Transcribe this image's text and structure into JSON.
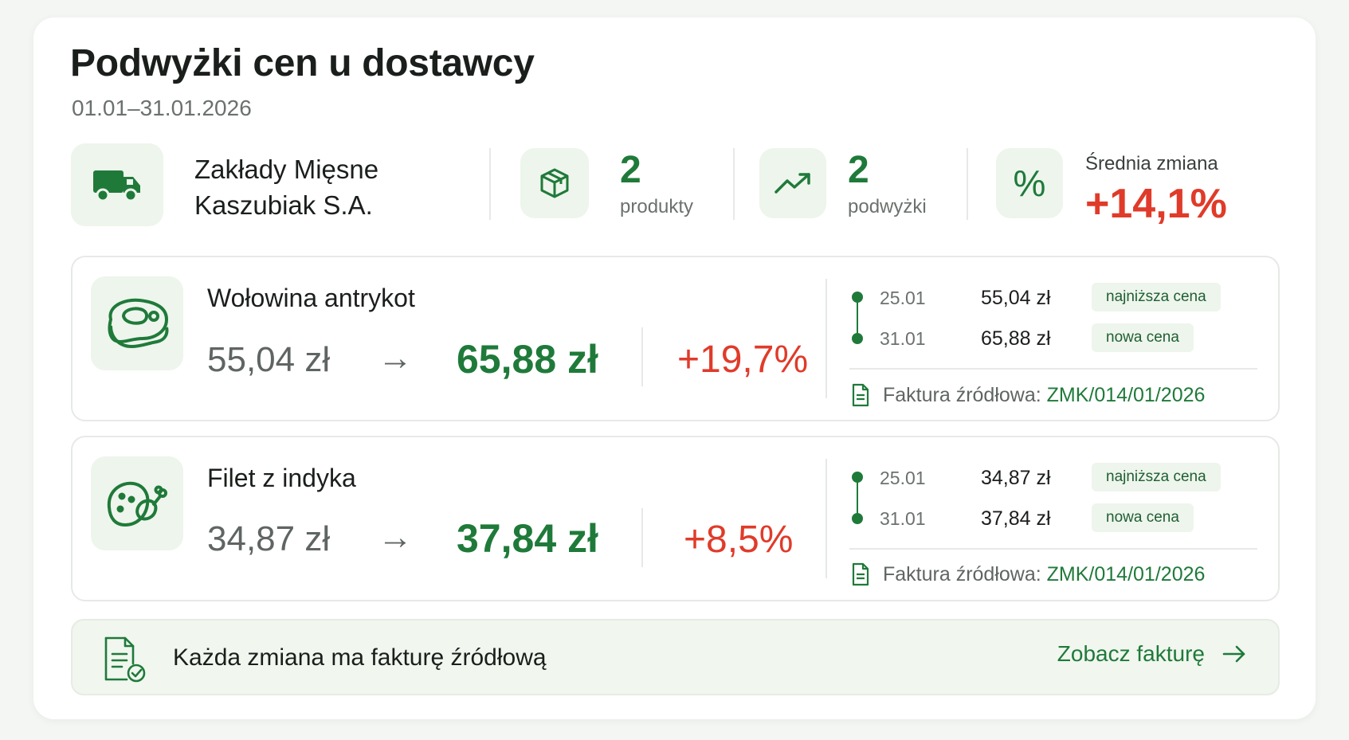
{
  "title": "Podwyżki cen u dostawcy",
  "date_range": "01.01–31.01.2026",
  "summary": {
    "supplier_line1": "Zakłady Mięsne",
    "supplier_line2": "Kaszubiak S.A.",
    "products_count": "2",
    "products_label": "produkty",
    "increases_count": "2",
    "increases_label": "podwyżki",
    "percent_symbol": "%",
    "avg_label": "Średnia zmiana",
    "avg_value": "+14,1%"
  },
  "products": [
    {
      "name": "Wołowina antrykot",
      "icon": "steak-icon",
      "old_price": "55,04 zł",
      "arrow": "→",
      "new_price": "65,88 zł",
      "change": "+19,7%",
      "history": [
        {
          "date": "25.01",
          "price": "55,04 zł",
          "tag": "najniższa cena"
        },
        {
          "date": "31.01",
          "price": "65,88 zł",
          "tag": "nowa cena"
        }
      ],
      "invoice_label": "Faktura źródłowa:",
      "invoice_number": "ZMK/014/01/2026"
    },
    {
      "name": "Filet z indyka",
      "icon": "poultry-icon",
      "old_price": "34,87 zł",
      "arrow": "→",
      "new_price": "37,84 zł",
      "change": "+8,5%",
      "history": [
        {
          "date": "25.01",
          "price": "34,87 zł",
          "tag": "najniższa cena"
        },
        {
          "date": "31.01",
          "price": "37,84 zł",
          "tag": "nowa cena"
        }
      ],
      "invoice_label": "Faktura źródłowa:",
      "invoice_number": "ZMK/014/01/2026"
    }
  ],
  "footer": {
    "text": "Każda zmiana ma fakturę źródłową",
    "link_label": "Zobacz fakturę"
  },
  "colors": {
    "accent_green": "#1f7a3a",
    "increase_red": "#e03b2a",
    "tile_bg": "#eef5ec"
  }
}
